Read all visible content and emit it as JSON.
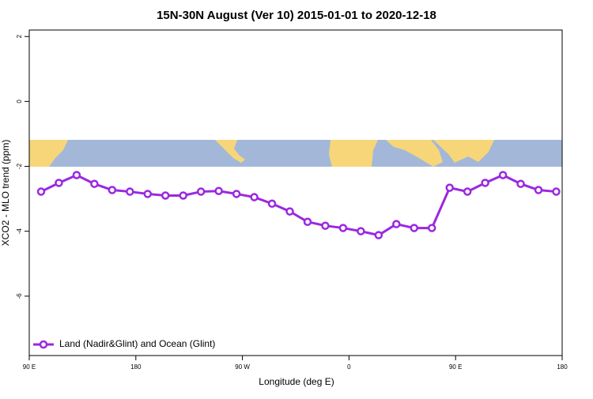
{
  "chart_data": {
    "type": "line",
    "title": "15N-30N August (Ver 10)   2015-01-01 to 2020-12-18",
    "x_label": "Longitude (deg E)",
    "y_label": "XCO2 - MLO trend (ppm)",
    "x": [
      100,
      115,
      130,
      145,
      160,
      175,
      190,
      205,
      220,
      235,
      250,
      265,
      280,
      295,
      310,
      325,
      340,
      355,
      370,
      385,
      400,
      415,
      430,
      445,
      460,
      475,
      490,
      505,
      520,
      535
    ],
    "series": [
      {
        "name": "Land (Nadir&Glint) and Ocean (Glint)",
        "color": "#9b27e0",
        "values": [
          -2.78,
          -2.51,
          -2.27,
          -2.54,
          -2.73,
          -2.78,
          -2.85,
          -2.9,
          -2.9,
          -2.78,
          -2.76,
          -2.85,
          -2.95,
          -3.15,
          -3.39,
          -3.71,
          -3.83,
          -3.9,
          -4.0,
          -4.12,
          -3.78,
          -3.9,
          -3.9,
          -2.66,
          -2.78,
          -2.51,
          -2.27,
          -2.54,
          -2.73,
          -2.78
        ]
      }
    ],
    "xlim": [
      90,
      540
    ],
    "xticks": [
      {
        "value": 90,
        "label": "90 E"
      },
      180,
      {
        "value": 270,
        "label": "90 W"
      },
      {
        "value": 360,
        "label": "0"
      },
      {
        "value": 450,
        "label": "90 E"
      },
      {
        "value": 540,
        "label": "180"
      }
    ],
    "ylim": [
      -7.83,
      2.2
    ],
    "yticks": [
      2,
      0,
      -2,
      -4,
      -6
    ],
    "legend": "bottom-left"
  }
}
